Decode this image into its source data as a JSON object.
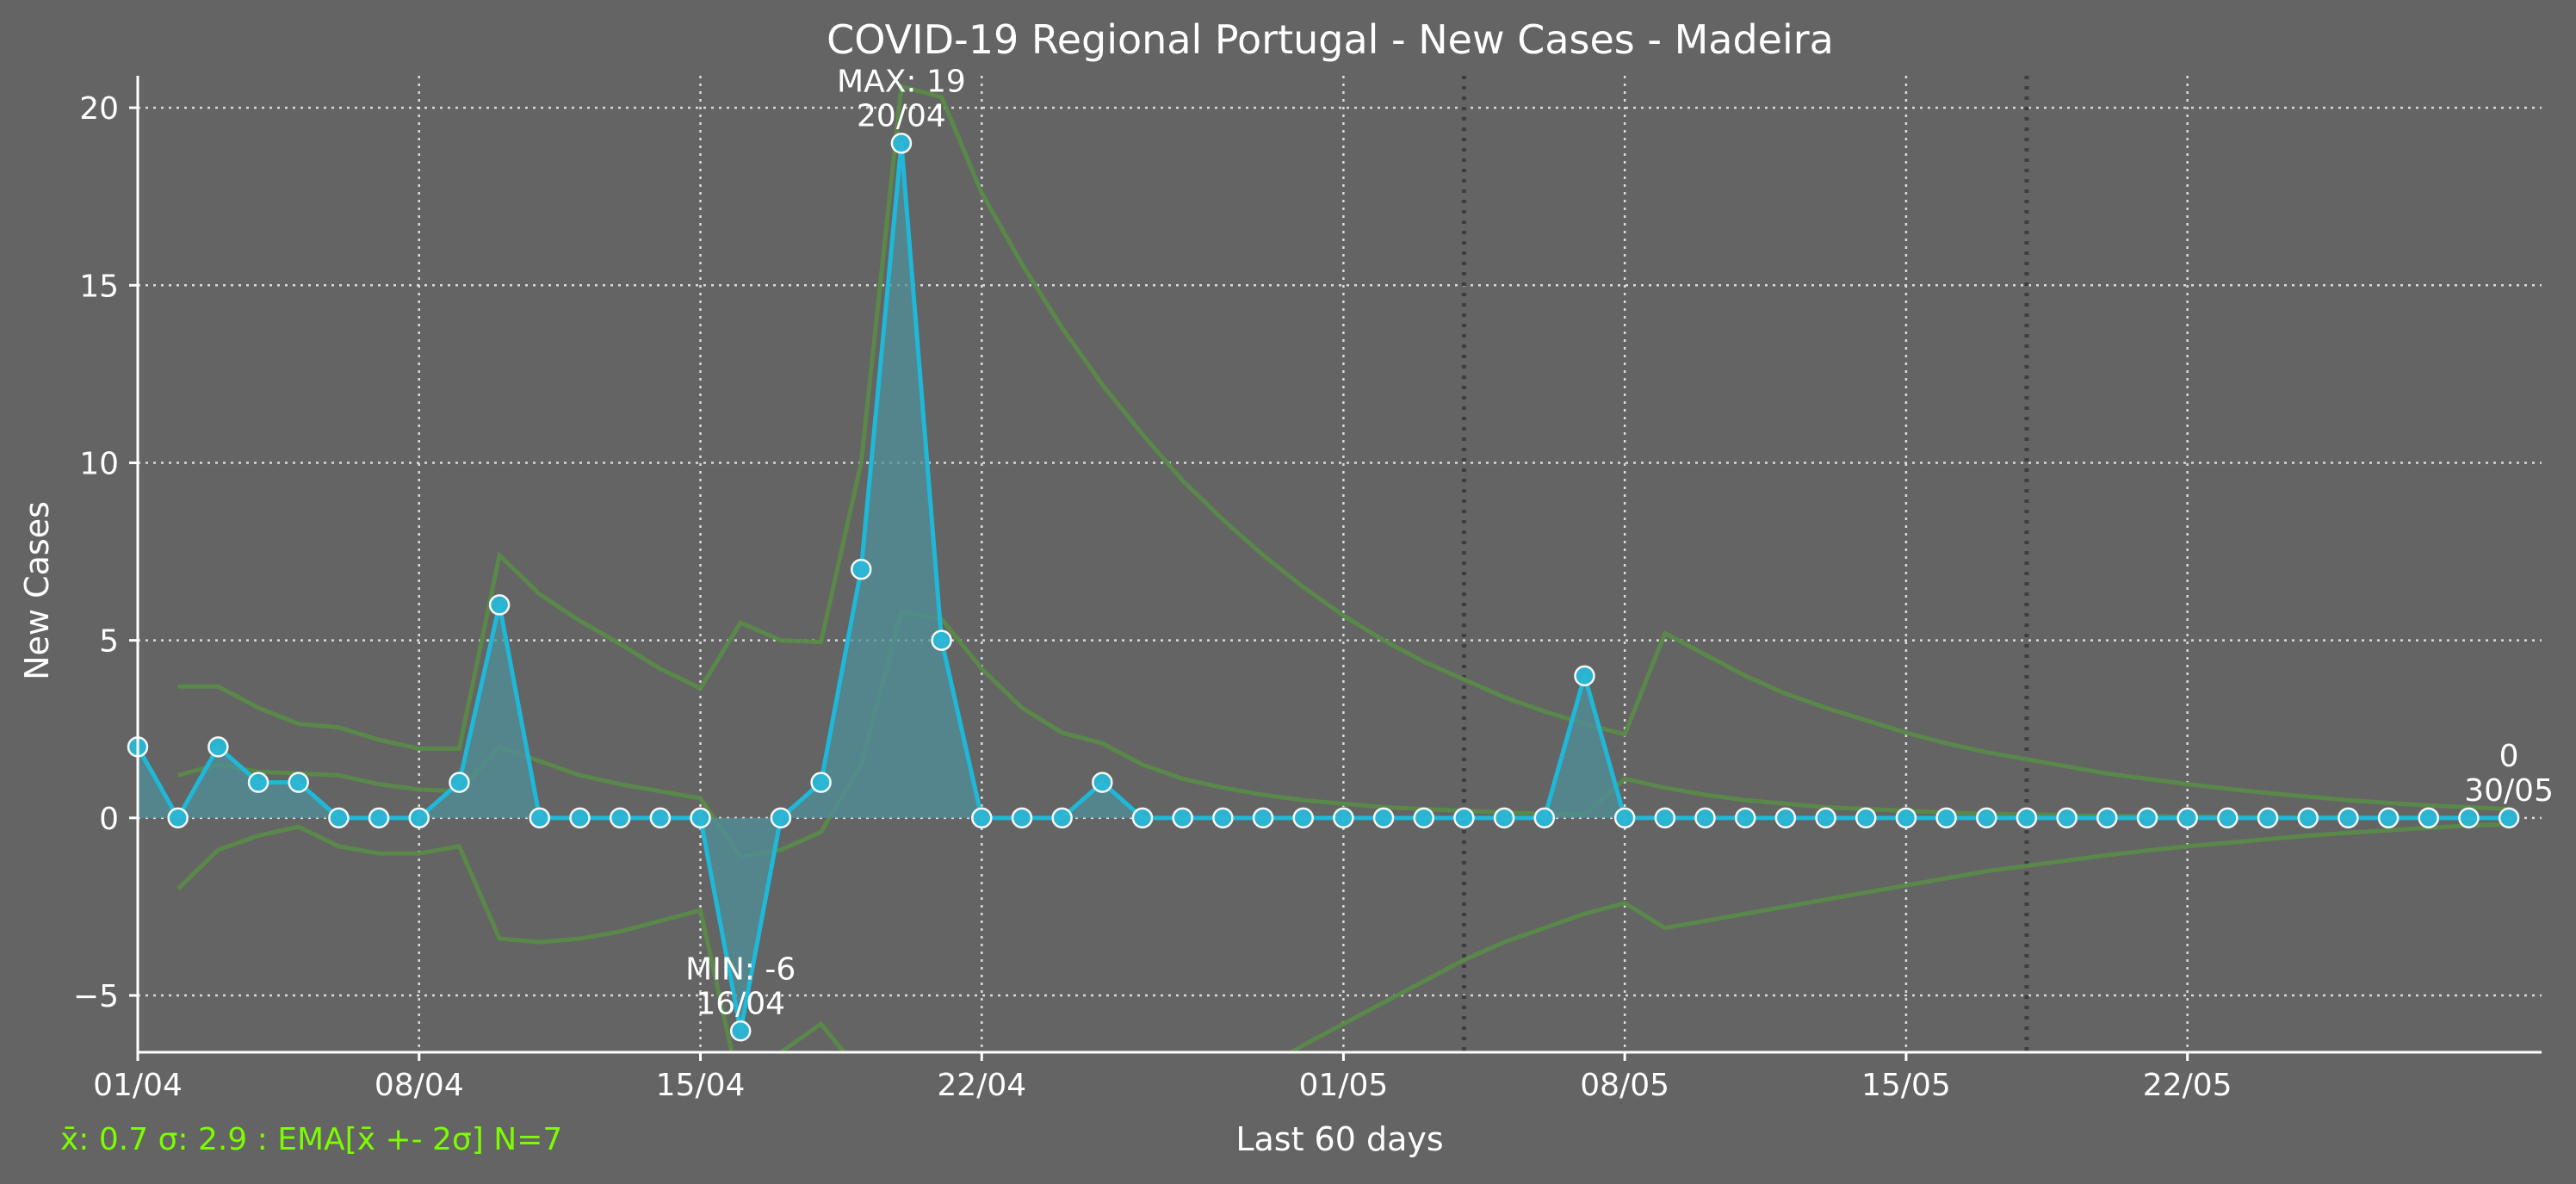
{
  "chart_data": {
    "type": "line",
    "title": "COVID-19 Regional Portugal - New Cases - Madeira",
    "xlabel": "Last 60 days",
    "ylabel": "New Cases",
    "ylim": [
      -6.6,
      20.9
    ],
    "xlim": [
      0,
      60
    ],
    "grid": true,
    "x_ticks": [
      {
        "i": 0,
        "label": "01/04"
      },
      {
        "i": 7,
        "label": "08/04"
      },
      {
        "i": 14,
        "label": "15/04"
      },
      {
        "i": 21,
        "label": "22/04"
      },
      {
        "i": 30,
        "label": "01/05"
      },
      {
        "i": 37,
        "label": "08/05"
      },
      {
        "i": 44,
        "label": "15/05"
      },
      {
        "i": 51,
        "label": "22/05"
      }
    ],
    "y_ticks": [
      {
        "v": -5,
        "label": "−5"
      },
      {
        "v": 0,
        "label": "0"
      },
      {
        "v": 5,
        "label": "5"
      },
      {
        "v": 10,
        "label": "10"
      },
      {
        "v": 15,
        "label": "15"
      },
      {
        "v": 20,
        "label": "20"
      }
    ],
    "vlines_dotted": [
      33,
      47
    ],
    "series": [
      {
        "values": [
          2,
          0,
          2,
          1,
          1,
          0,
          0,
          0,
          1,
          6,
          0,
          0,
          0,
          0,
          0,
          -6,
          0,
          1,
          7,
          19,
          5,
          0,
          0,
          0,
          1,
          0,
          0,
          0,
          0,
          0,
          0,
          0,
          0,
          0,
          0,
          0,
          4,
          0,
          0,
          0,
          0,
          0,
          0,
          0,
          0,
          0,
          0,
          0,
          0,
          0,
          0,
          0,
          0,
          0,
          0,
          0,
          0,
          0,
          0,
          0
        ],
        "color": "#1fb8d8",
        "fill": "#4f8f9a",
        "marker_face": "#2bb8d6",
        "marker_edge": "#ffffff"
      }
    ],
    "bands": {
      "color": "#5a8a4a",
      "start_index": 1,
      "upper": [
        3.7,
        3.7,
        3.1,
        2.65,
        2.55,
        2.2,
        1.95,
        1.95,
        7.4,
        6.3,
        5.55,
        4.9,
        4.2,
        3.65,
        5.5,
        5.0,
        4.95,
        10,
        20.6,
        20.3,
        17.6,
        15.6,
        13.8,
        12.2,
        10.8,
        9.5,
        8.4,
        7.4,
        6.5,
        5.7,
        5.0,
        4.4,
        3.9,
        3.4,
        3.0,
        2.65,
        2.35,
        5.2,
        4.6,
        4.0,
        3.5,
        3.1,
        2.75,
        2.4,
        2.1,
        1.85,
        1.65,
        1.45,
        1.25,
        1.1,
        0.95,
        0.82,
        0.7,
        0.6,
        0.5,
        0.42,
        0.35,
        0.3,
        0.25
      ],
      "mean": [
        1.2,
        1.5,
        1.3,
        1.25,
        1.2,
        0.95,
        0.8,
        0.75,
        2.0,
        1.6,
        1.2,
        0.95,
        0.75,
        0.55,
        -1.1,
        -0.9,
        -0.4,
        1.5,
        5.8,
        5.6,
        4.2,
        3.1,
        2.4,
        2.1,
        1.5,
        1.1,
        0.85,
        0.65,
        0.5,
        0.4,
        0.3,
        0.25,
        0.2,
        0.15,
        0.12,
        0.1,
        1.1,
        0.85,
        0.65,
        0.5,
        0.4,
        0.3,
        0.25,
        0.2,
        0.15,
        0.12,
        0.1,
        0.08,
        0.06,
        0.05,
        0.04,
        0.03,
        0.02,
        0.02,
        0.01,
        0.01,
        0.01,
        0.0,
        0.0
      ],
      "lower": [
        -2.0,
        -0.9,
        -0.5,
        -0.25,
        -0.8,
        -1.0,
        -1.0,
        -0.8,
        -3.4,
        -3.5,
        -3.4,
        -3.2,
        -2.9,
        -2.6,
        -7.7,
        -6.6,
        -5.8,
        -7.2,
        -11,
        -9,
        -10,
        -10.5,
        -10,
        -9.5,
        -9,
        -8.5,
        -7.8,
        -7.1,
        -6.4,
        -5.8,
        -5.2,
        -4.6,
        -4.0,
        -3.5,
        -3.1,
        -2.7,
        -2.4,
        -3.1,
        -2.9,
        -2.7,
        -2.5,
        -2.3,
        -2.1,
        -1.9,
        -1.7,
        -1.5,
        -1.35,
        -1.2,
        -1.05,
        -0.92,
        -0.8,
        -0.7,
        -0.6,
        -0.5,
        -0.42,
        -0.35,
        -0.28,
        -0.22,
        -0.18
      ]
    },
    "annotations": [
      {
        "i": 19,
        "v": 19,
        "line1": "MAX: 19",
        "line2": "20/04",
        "pos": "above"
      },
      {
        "i": 15,
        "v": -6,
        "line1": "MIN: -6",
        "line2": "16/04",
        "pos": "above"
      },
      {
        "i": 59,
        "v": 0,
        "line1": "0",
        "line2": "30/05",
        "pos": "above"
      }
    ],
    "footer": "x̄: 0.7 σ: 2.9 : EMA[x̄ +- 2σ] N=7",
    "colors": {
      "background": "#636463",
      "grid": "#e8e8e8",
      "axis": "#ffffff",
      "text": "#ffffff",
      "footer": "#7CFC00",
      "vline": "#3e3e3e"
    }
  }
}
